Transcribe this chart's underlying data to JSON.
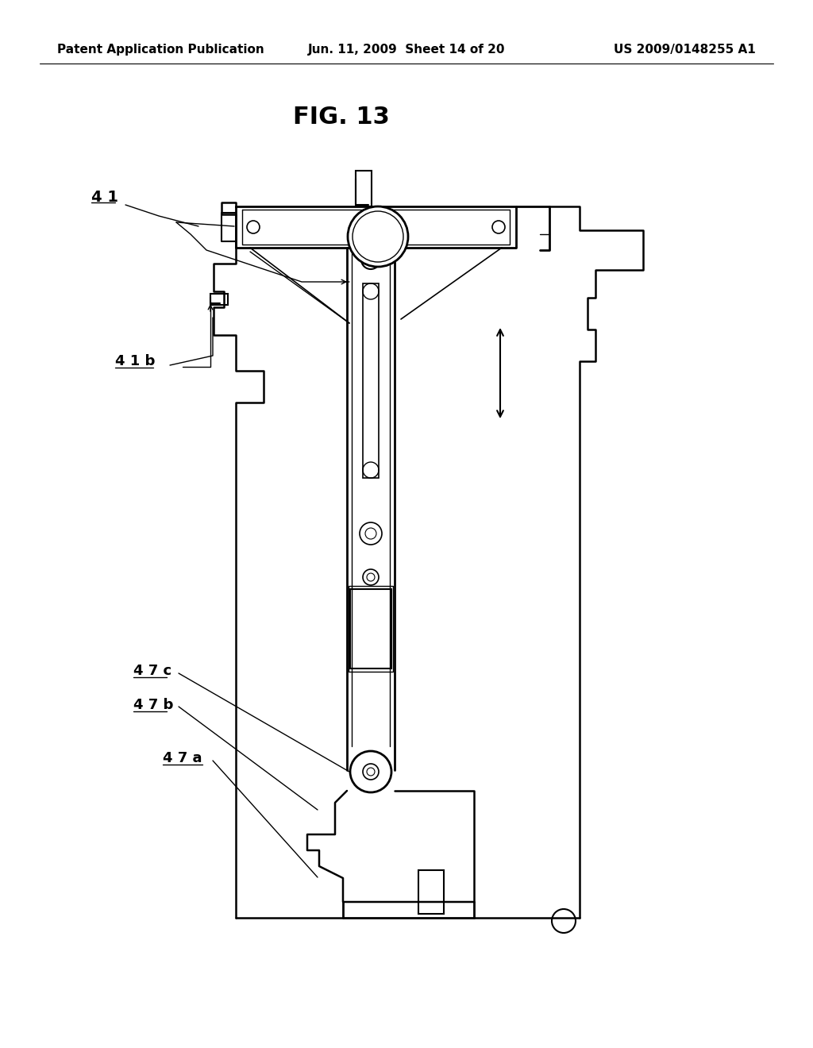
{
  "background_color": "#ffffff",
  "header_left": "Patent Application Publication",
  "header_mid": "Jun. 11, 2009  Sheet 14 of 20",
  "header_right": "US 2009/0148255 A1",
  "fig_title": "FIG. 13",
  "line_color": "#000000",
  "line_width": 1.8
}
